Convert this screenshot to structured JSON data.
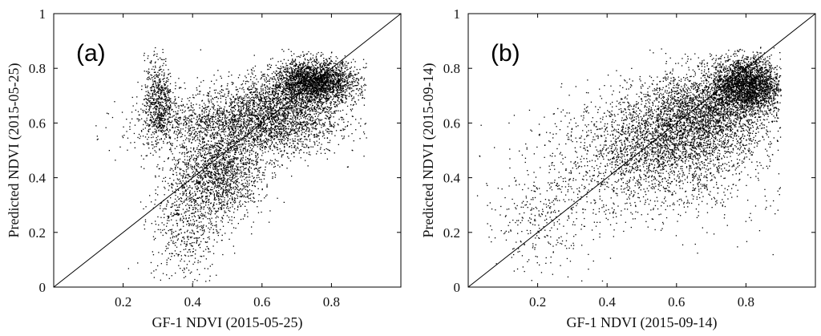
{
  "chart_data": [
    {
      "type": "scatter",
      "panel_label": "(a)",
      "xlabel": "GF-1 NDVI (2015-05-25)",
      "ylabel": "Predicted NDVI (2015-05-25)",
      "xlim": [
        0,
        1
      ],
      "ylim": [
        0,
        1
      ],
      "xticks": [
        "0.2",
        "0.4",
        "0.6",
        "0.8"
      ],
      "xtick_values": [
        0.2,
        0.4,
        0.6,
        0.8
      ],
      "yticks": [
        "0",
        "0.2",
        "0.4",
        "0.6",
        "0.8",
        "1"
      ],
      "ytick_values": [
        0,
        0.2,
        0.4,
        0.6,
        0.8,
        1
      ],
      "reference_line": "1:1",
      "grid": false,
      "point_color": "#000000",
      "point_clusters": [
        {
          "x": [
            0.62,
            0.1
          ],
          "y": [
            0.62,
            0.07
          ],
          "density": "very high"
        },
        {
          "x": [
            0.75,
            0.06
          ],
          "y": [
            0.75,
            0.04
          ],
          "density": "very high"
        },
        {
          "x": [
            0.48,
            0.06
          ],
          "y": [
            0.42,
            0.08
          ],
          "density": "high"
        },
        {
          "x": [
            0.38,
            0.05
          ],
          "y": [
            0.25,
            0.12
          ],
          "density": "medium"
        },
        {
          "x": [
            0.3,
            0.02
          ],
          "y": [
            0.68,
            0.08
          ],
          "density": "medium"
        },
        {
          "x": [
            0.4,
            0.1
          ],
          "y": [
            0.6,
            0.05
          ],
          "density": "medium"
        }
      ]
    },
    {
      "type": "scatter",
      "panel_label": "(b)",
      "xlabel": "GF-1 NDVI (2015-09-14)",
      "ylabel": "Predicted NDVI (2015-09-14)",
      "xlim": [
        0,
        1
      ],
      "ylim": [
        0,
        1
      ],
      "xticks": [
        "0.2",
        "0.4",
        "0.6",
        "0.8"
      ],
      "xtick_values": [
        0.2,
        0.4,
        0.6,
        0.8
      ],
      "yticks": [
        "0",
        "0.2",
        "0.4",
        "0.6",
        "0.8",
        "1"
      ],
      "ytick_values": [
        0,
        0.2,
        0.4,
        0.6,
        0.8,
        1
      ],
      "reference_line": "1:1",
      "grid": false,
      "point_color": "#000000",
      "point_clusters": [
        {
          "x": [
            0.68,
            0.1
          ],
          "y": [
            0.63,
            0.08
          ],
          "density": "very high"
        },
        {
          "x": [
            0.8,
            0.05
          ],
          "y": [
            0.74,
            0.05
          ],
          "density": "very high"
        },
        {
          "x": [
            0.55,
            0.1
          ],
          "y": [
            0.52,
            0.09
          ],
          "density": "high"
        },
        {
          "x": [
            0.4,
            0.12
          ],
          "y": [
            0.45,
            0.12
          ],
          "density": "medium"
        },
        {
          "x": [
            0.7,
            0.12
          ],
          "y": [
            0.4,
            0.1
          ],
          "density": "low"
        },
        {
          "x": [
            0.2,
            0.08
          ],
          "y": [
            0.25,
            0.1
          ],
          "density": "low"
        }
      ]
    }
  ]
}
